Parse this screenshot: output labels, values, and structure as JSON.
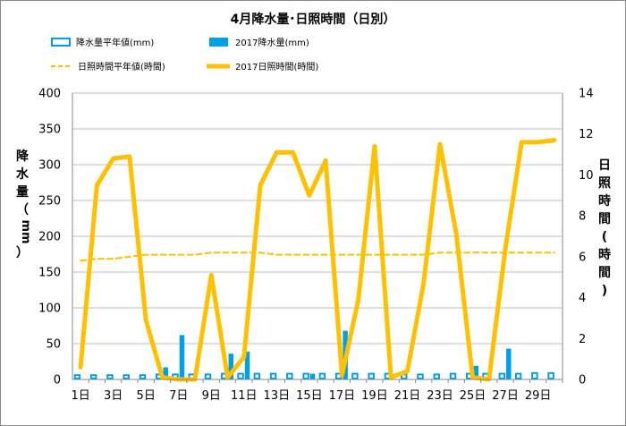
{
  "chart_data": {
    "type": "bar+line",
    "title": "4月降水量･日照時間（日別）",
    "ylabel_left": "降水量（mm）",
    "ylabel_right": "日照時間(時間)",
    "ylim_left": [
      0,
      400
    ],
    "yticks_left": [
      0,
      50,
      100,
      150,
      200,
      250,
      300,
      350,
      400
    ],
    "ylim_right": [
      0,
      14
    ],
    "yticks_right": [
      0,
      2,
      4,
      6,
      8,
      10,
      12,
      14
    ],
    "grid": "horizontal",
    "x_days": [
      1,
      2,
      3,
      4,
      5,
      6,
      7,
      8,
      9,
      10,
      11,
      12,
      13,
      14,
      15,
      16,
      17,
      18,
      19,
      20,
      21,
      22,
      23,
      24,
      25,
      26,
      27,
      28,
      29,
      30
    ],
    "x_tick_labels": [
      "1日",
      "3日",
      "5日",
      "7日",
      "9日",
      "11日",
      "13日",
      "15日",
      "17日",
      "19日",
      "21日",
      "23日",
      "25日",
      "27日",
      "29日"
    ],
    "x_tick_days": [
      1,
      3,
      5,
      7,
      9,
      11,
      13,
      15,
      17,
      19,
      21,
      23,
      25,
      27,
      29
    ],
    "legend": {
      "normal_precip": "降水量平年値(mm)",
      "precip_2017": "2017降水量(mm)",
      "normal_sunshine": "日照時間平年値(時間)",
      "sunshine_2017": "2017日照時間(時間)"
    },
    "series": [
      {
        "name": "降水量平年値(mm)",
        "type": "bar",
        "style": "outline",
        "color": "#00a0e9",
        "axis": "left",
        "values": [
          6,
          6,
          6,
          6,
          6,
          7,
          7,
          7,
          7,
          8,
          8,
          8,
          8,
          8,
          8,
          8,
          8,
          8,
          8,
          8,
          7,
          7,
          7,
          8,
          8,
          8,
          8,
          8,
          9,
          9
        ]
      },
      {
        "name": "2017降水量(mm)",
        "type": "bar",
        "style": "filled",
        "color": "#00a0e9",
        "axis": "left",
        "values": [
          0,
          0,
          0,
          0,
          0,
          17,
          62,
          0,
          0,
          36,
          39,
          0,
          0,
          0,
          8,
          0,
          68,
          0,
          0,
          0,
          0,
          0,
          0,
          0,
          19,
          0,
          43,
          0,
          0,
          0
        ]
      },
      {
        "name": "日照時間平年値(時間)",
        "type": "line",
        "style": "dashed",
        "color": "#ffc000",
        "axis": "right",
        "values": [
          5.8,
          5.9,
          5.9,
          6.0,
          6.1,
          6.1,
          6.1,
          6.1,
          6.2,
          6.2,
          6.2,
          6.2,
          6.1,
          6.1,
          6.1,
          6.1,
          6.1,
          6.1,
          6.1,
          6.1,
          6.1,
          6.1,
          6.2,
          6.2,
          6.2,
          6.2,
          6.2,
          6.2,
          6.2,
          6.2
        ]
      },
      {
        "name": "2017日照時間(時間)",
        "type": "line",
        "style": "solid",
        "color": "#ffc000",
        "axis": "right",
        "values": [
          0.6,
          9.5,
          10.8,
          10.9,
          2.9,
          0.1,
          0.0,
          0.0,
          5.1,
          0.1,
          1.1,
          9.5,
          11.1,
          11.1,
          9.0,
          10.7,
          0.2,
          3.9,
          11.4,
          0.1,
          0.4,
          4.7,
          11.5,
          7.1,
          0.1,
          0.0,
          6.4,
          11.6,
          11.6,
          11.7
        ]
      }
    ]
  }
}
